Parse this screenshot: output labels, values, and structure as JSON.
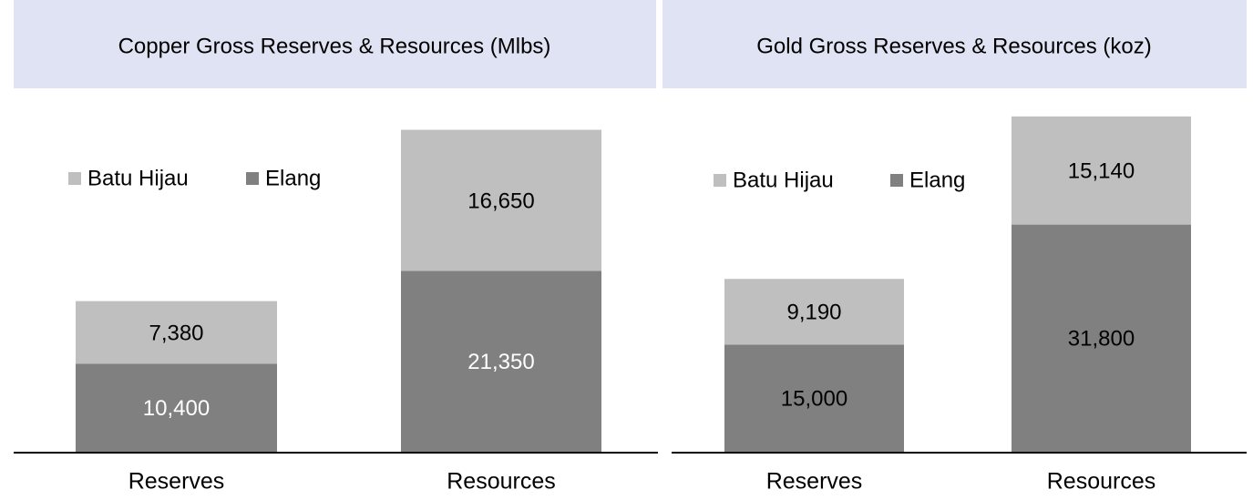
{
  "chart_data": [
    {
      "type": "stacked_bar",
      "title": "Copper Gross Reserves & Resources (Mlbs)",
      "categories": [
        "Reserves",
        "Resources"
      ],
      "series": [
        {
          "name": "Batu Hijau",
          "color": "#bfbfbf",
          "label_color": "#000000",
          "values": [
            7380,
            16650
          ],
          "value_labels": [
            "7,380",
            "16,650"
          ]
        },
        {
          "name": "Elang",
          "color": "#808080",
          "label_color": "#ffffff",
          "values": [
            10400,
            21350
          ],
          "value_labels": [
            "10,400",
            "21,350"
          ]
        }
      ],
      "ylim": [
        0,
        43000
      ]
    },
    {
      "type": "stacked_bar",
      "title": "Gold Gross Reserves & Resources (koz)",
      "categories": [
        "Reserves",
        "Resources"
      ],
      "series": [
        {
          "name": "Batu Hijau",
          "color": "#bfbfbf",
          "label_color": "#000000",
          "values": [
            9190,
            15140
          ],
          "value_labels": [
            "9,190",
            "15,140"
          ]
        },
        {
          "name": "Elang",
          "color": "#808080",
          "label_color": "#000000",
          "values": [
            15000,
            31800
          ],
          "value_labels": [
            "15,000",
            "31,800"
          ]
        }
      ],
      "ylim": [
        0,
        51000
      ]
    }
  ]
}
